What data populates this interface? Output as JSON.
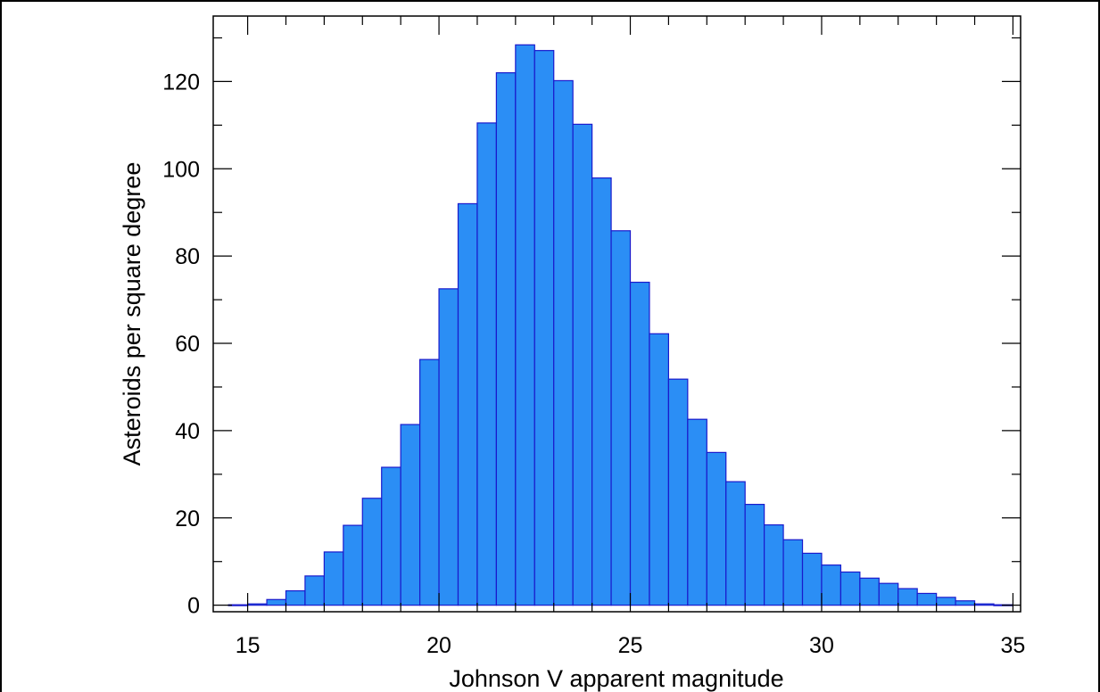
{
  "chart_data": {
    "type": "bar",
    "title": "",
    "xlabel": "Johnson V apparent magnitude",
    "ylabel": "Asteroids per square degree",
    "xlim": [
      14.1,
      35.2
    ],
    "ylim": [
      -1.5,
      135
    ],
    "x_ticks": [
      15,
      20,
      25,
      30,
      35
    ],
    "y_ticks": [
      0,
      20,
      40,
      60,
      80,
      100,
      120
    ],
    "bin_width": 0.5,
    "bins_start": [
      14.5,
      15.0,
      15.5,
      16.0,
      16.5,
      17.0,
      17.5,
      18.0,
      18.5,
      19.0,
      19.5,
      20.0,
      20.5,
      21.0,
      21.5,
      22.0,
      22.5,
      23.0,
      23.5,
      24.0,
      24.5,
      25.0,
      25.5,
      26.0,
      26.5,
      27.0,
      27.5,
      28.0,
      28.5,
      29.0,
      29.5,
      30.0,
      30.5,
      31.0,
      31.5,
      32.0,
      32.5,
      33.0,
      33.5,
      34.0,
      34.5
    ],
    "values": [
      0.1,
      0.3,
      1.3,
      3.3,
      6.7,
      12.2,
      18.3,
      24.5,
      31.6,
      41.4,
      56.3,
      72.5,
      92.0,
      110.5,
      122.0,
      128.4,
      127.1,
      120.2,
      110.2,
      97.9,
      85.8,
      74.0,
      62.2,
      51.8,
      42.6,
      35.0,
      28.3,
      23.1,
      18.4,
      15.0,
      11.9,
      9.2,
      7.6,
      6.2,
      5.0,
      3.8,
      2.7,
      1.8,
      1.0,
      0.3,
      0.1
    ],
    "grid": false,
    "bar_color": "#2b8ef5",
    "bar_edge_color": "#1a1acc"
  }
}
